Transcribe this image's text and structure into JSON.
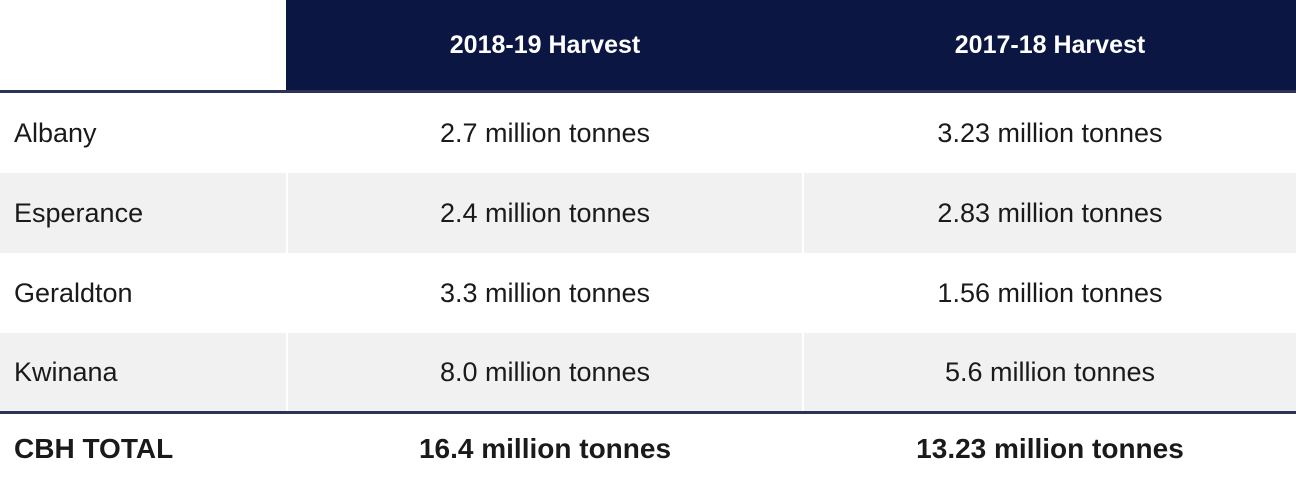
{
  "table": {
    "headers": [
      "",
      "2018-19 Harvest",
      "2017-18 Harvest"
    ],
    "rows": [
      {
        "label": "Albany",
        "harvest_2018_19": "2.7 million tonnes",
        "harvest_2017_18": "3.23 million tonnes"
      },
      {
        "label": "Esperance",
        "harvest_2018_19": "2.4 million tonnes",
        "harvest_2017_18": "2.83 million tonnes"
      },
      {
        "label": "Geraldton",
        "harvest_2018_19": "3.3 million tonnes",
        "harvest_2017_18": "1.56 million tonnes"
      },
      {
        "label": "Kwinana",
        "harvest_2018_19": "8.0 million tonnes",
        "harvest_2017_18": "5.6 million tonnes"
      }
    ],
    "total": {
      "label": "CBH TOTAL",
      "harvest_2018_19": "16.4 million tonnes",
      "harvest_2017_18": "13.23 million tonnes"
    }
  },
  "colors": {
    "header_background": "#0b1742",
    "header_text": "#ffffff",
    "shaded_row": "#f1f1f1",
    "rule": "#2b3553"
  }
}
